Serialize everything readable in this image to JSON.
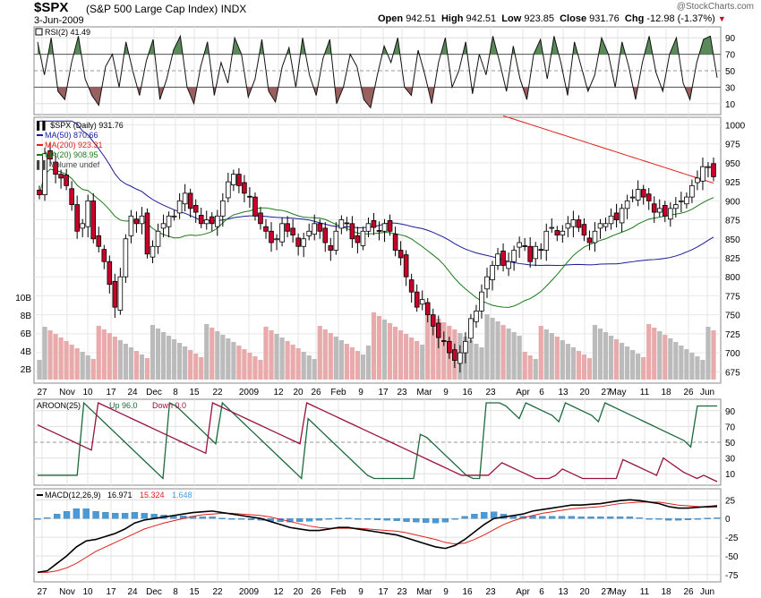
{
  "header": {
    "symbol": "$SPX",
    "name": "(S&P 500 Large Cap Index)",
    "exchange": "INDX",
    "date": "3-Jun-2009",
    "open_label": "Open",
    "open": "942.51",
    "high_label": "High",
    "high": "942.51",
    "low_label": "Low",
    "low": "923.85",
    "close_label": "Close",
    "close": "931.76",
    "chg_label": "Chg",
    "chg": "-12.98 (-1.37%)",
    "credit": "@StockCharts.com"
  },
  "colors": {
    "up": "#ffffff",
    "down": "#c8002a",
    "ma50": "#1a1a9a",
    "ma200": "#e0201a",
    "ma20": "#1a7a1a",
    "rsi_over": "#5a8a5a",
    "rsi_under": "#9a6060",
    "aroon_up": "#1a6a3a",
    "aroon_down": "#9a1040",
    "vol_up": "#bbbbbb",
    "vol_down": "#e8aaaa",
    "macd": "#000000",
    "signal": "#e0201a",
    "hist": "#4a9ad8"
  },
  "chart_data": [
    {
      "type": "line",
      "panel": "RSI",
      "label": "RSI(2) 41.49",
      "ylim": [
        0,
        100
      ],
      "y_ticks": [
        10,
        30,
        50,
        70,
        90
      ],
      "values": [
        85,
        45,
        90,
        25,
        15,
        60,
        92,
        40,
        20,
        8,
        55,
        70,
        30,
        85,
        50,
        20,
        62,
        88,
        15,
        40,
        75,
        92,
        30,
        10,
        55,
        85,
        20,
        60,
        35,
        90,
        70,
        18,
        40,
        88,
        25,
        12,
        55,
        78,
        30,
        90,
        45,
        20,
        65,
        88,
        10,
        30,
        70,
        55,
        15,
        5,
        45,
        80,
        60,
        90,
        30,
        20,
        75,
        45,
        10,
        60,
        90,
        30,
        50,
        85,
        22,
        70,
        45,
        92,
        60,
        25,
        80,
        40,
        15,
        70,
        88,
        40,
        92,
        60,
        20,
        85,
        55,
        25,
        45,
        90,
        70,
        30,
        85,
        55,
        15,
        60,
        92,
        48,
        25,
        70,
        90,
        35,
        15,
        60,
        88,
        92,
        41.49
      ]
    },
    {
      "type": "candlestick",
      "panel": "Price",
      "label": "$SPX (Daily) 931.76",
      "ylim": [
        660,
        1010
      ],
      "y_ticks": [
        675,
        700,
        725,
        750,
        775,
        800,
        825,
        850,
        875,
        900,
        925,
        950,
        975,
        1000
      ],
      "x_tick_labels": [
        "27",
        "Nov",
        "10",
        "17",
        "24",
        "Dec",
        "8",
        "15",
        "22",
        "2009",
        "12",
        "20",
        "26",
        "Feb",
        "9",
        "17",
        "23",
        "Mar",
        "9",
        "16",
        "23",
        "Apr",
        "6",
        "13",
        "20",
        "27",
        "May",
        "11",
        "18",
        "26",
        "Jun"
      ],
      "close": [
        908,
        962,
        955,
        935,
        930,
        920,
        895,
        860,
        870,
        900,
        850,
        840,
        820,
        790,
        760,
        800,
        850,
        880,
        870,
        880,
        830,
        840,
        860,
        870,
        880,
        880,
        900,
        910,
        890,
        885,
        870,
        875,
        870,
        880,
        900,
        925,
        935,
        920,
        910,
        905,
        880,
        870,
        860,
        845,
        850,
        870,
        860,
        855,
        840,
        850,
        860,
        870,
        860,
        845,
        835,
        860,
        875,
        870,
        850,
        845,
        860,
        870,
        865,
        860,
        870,
        860,
        835,
        825,
        800,
        780,
        760,
        770,
        750,
        735,
        720,
        715,
        700,
        690,
        700,
        715,
        745,
        755,
        780,
        800,
        815,
        830,
        815,
        820,
        835,
        845,
        840,
        820,
        840,
        835,
        860,
        865,
        855,
        860,
        870,
        875,
        865,
        855,
        845,
        860,
        870,
        870,
        880,
        875,
        890,
        900,
        905,
        915,
        905,
        900,
        885,
        890,
        880,
        890,
        895,
        900,
        905,
        920,
        930,
        945,
        945,
        931.76
      ],
      "volume_label": "Volume undef",
      "volume_ticks": [
        "2B",
        "4B",
        "6B",
        "8B",
        "10B"
      ],
      "legend": [
        {
          "name": "MA(50) 870.66"
        },
        {
          "name": "MA(200) 923.31"
        },
        {
          "name": "MA(20) 908.95"
        }
      ]
    },
    {
      "type": "line",
      "panel": "AROON",
      "label_main": "AROON(25)",
      "label_up": "Up 96.0",
      "label_down": "Down 0.0",
      "ylim": [
        0,
        100
      ],
      "y_ticks": [
        10,
        30,
        50,
        70,
        90
      ],
      "series": [
        {
          "name": "Up",
          "values": [
            8,
            8,
            8,
            8,
            8,
            8,
            8,
            100,
            92,
            84,
            76,
            68,
            60,
            52,
            44,
            36,
            28,
            20,
            12,
            4,
            100,
            96,
            88,
            80,
            72,
            64,
            56,
            48,
            100,
            92,
            84,
            76,
            68,
            60,
            52,
            44,
            36,
            28,
            20,
            12,
            4,
            80,
            72,
            64,
            56,
            48,
            40,
            32,
            24,
            16,
            8,
            4,
            4,
            4,
            4,
            4,
            4,
            4,
            60,
            56,
            48,
            40,
            32,
            24,
            16,
            8,
            4,
            4,
            100,
            100,
            100,
            96,
            88,
            80,
            100,
            96,
            92,
            88,
            84,
            76,
            100,
            96,
            92,
            88,
            84,
            76,
            100,
            96,
            92,
            88,
            84,
            80,
            76,
            72,
            68,
            64,
            60,
            56,
            52,
            44,
            96,
            96,
            96,
            96.0
          ]
        },
        {
          "name": "Down",
          "values": [
            72,
            68,
            64,
            60,
            56,
            52,
            48,
            44,
            40,
            100,
            96,
            92,
            88,
            84,
            80,
            76,
            72,
            68,
            64,
            60,
            56,
            52,
            48,
            44,
            40,
            36,
            100,
            96,
            92,
            88,
            84,
            80,
            76,
            72,
            68,
            64,
            60,
            56,
            52,
            48,
            100,
            96,
            92,
            88,
            84,
            80,
            76,
            72,
            68,
            64,
            60,
            56,
            52,
            48,
            44,
            40,
            36,
            32,
            28,
            24,
            20,
            16,
            12,
            8,
            8,
            8,
            8,
            8,
            16,
            24,
            20,
            16,
            12,
            8,
            4,
            4,
            4,
            8,
            16,
            12,
            8,
            4,
            4,
            4,
            4,
            4,
            4,
            28,
            24,
            20,
            16,
            12,
            8,
            30,
            24,
            18,
            12,
            8,
            4,
            8,
            4,
            0.0
          ]
        }
      ]
    },
    {
      "type": "line",
      "panel": "MACD",
      "label_main": "MACD(12,26,9)",
      "label_macd": "16.971",
      "label_signal": "15.324",
      "label_hist": "1.648",
      "ylim": [
        -80,
        35
      ],
      "y_ticks": [
        -75,
        -50,
        -25,
        0,
        25
      ],
      "series": [
        {
          "name": "MACD",
          "values": [
            -72,
            -70,
            -60,
            -50,
            -38,
            -30,
            -28,
            -24,
            -20,
            -14,
            -6,
            -2,
            0,
            2,
            4,
            6,
            8,
            9,
            10,
            8,
            6,
            4,
            2,
            0,
            -4,
            -8,
            -12,
            -14,
            -16,
            -16,
            -14,
            -12,
            -12,
            -14,
            -16,
            -18,
            -20,
            -22,
            -26,
            -30,
            -34,
            -38,
            -40,
            -36,
            -28,
            -18,
            -8,
            0,
            2,
            4,
            6,
            10,
            12,
            14,
            16,
            18,
            18,
            19,
            20,
            22,
            24,
            25,
            24,
            22,
            20,
            16,
            14,
            14,
            15,
            16,
            17
          ]
        },
        {
          "name": "Signal",
          "values": [
            -72,
            -72,
            -70,
            -66,
            -60,
            -52,
            -44,
            -38,
            -32,
            -26,
            -20,
            -14,
            -10,
            -6,
            -3,
            0,
            3,
            5,
            6,
            7,
            7,
            6,
            5,
            4,
            2,
            -1,
            -4,
            -7,
            -10,
            -12,
            -13,
            -13,
            -13,
            -13,
            -14,
            -15,
            -16,
            -17,
            -19,
            -22,
            -25,
            -28,
            -32,
            -34,
            -33,
            -28,
            -22,
            -15,
            -8,
            -3,
            1,
            4,
            7,
            9,
            11,
            13,
            14,
            15,
            16,
            18,
            20,
            21,
            22,
            22,
            22,
            20,
            18,
            17,
            16,
            15,
            15.3
          ]
        }
      ]
    }
  ]
}
